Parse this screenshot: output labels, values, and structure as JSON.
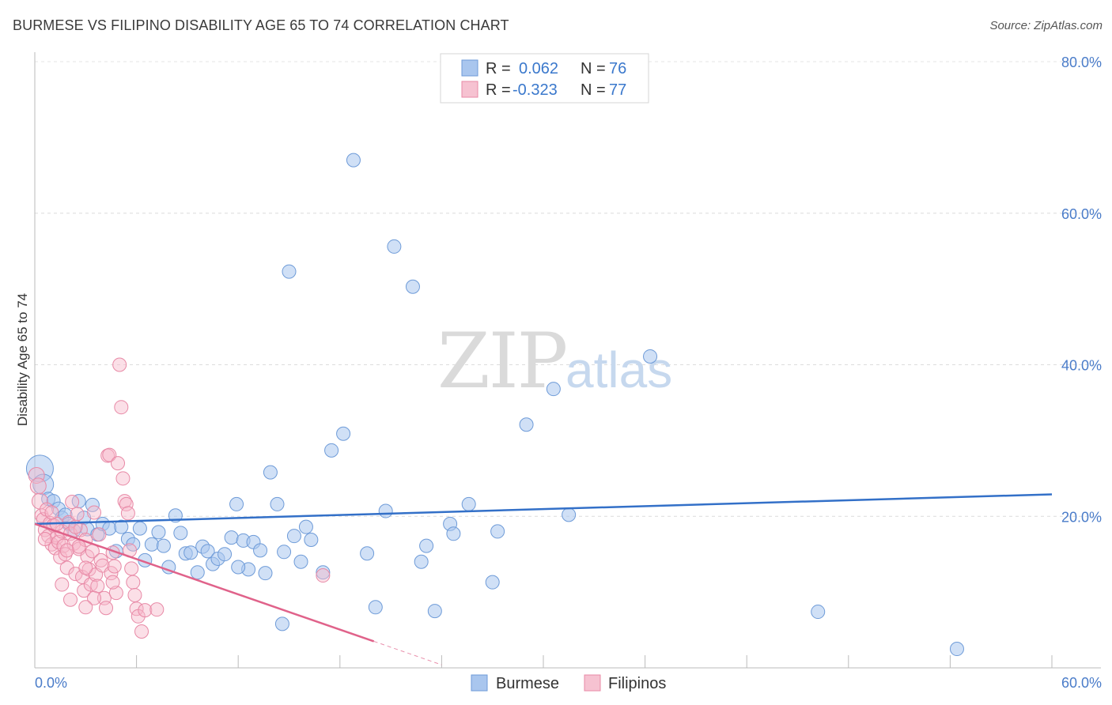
{
  "title": "BURMESE VS FILIPINO DISABILITY AGE 65 TO 74 CORRELATION CHART",
  "source": "Source: ZipAtlas.com",
  "watermark": {
    "part1": "ZIP",
    "part2": "atlas"
  },
  "chart_data": {
    "type": "scatter",
    "title": "BURMESE VS FILIPINO DISABILITY AGE 65 TO 74 CORRELATION CHART",
    "xlabel": "",
    "ylabel": "Disability Age 65 to 74",
    "xlim": [
      0,
      60
    ],
    "ylim": [
      0,
      80
    ],
    "x_tick_labels": [
      "0.0%",
      "60.0%"
    ],
    "y_ticks": [
      20,
      40,
      60,
      80
    ],
    "y_tick_labels": [
      "20.0%",
      "40.0%",
      "60.0%",
      "80.0%"
    ],
    "legend": {
      "entries": [
        {
          "r_label": "R =",
          "r_value": "0.062",
          "n_label": "N =",
          "n_value": "76"
        },
        {
          "r_label": "R =",
          "r_value": "-0.323",
          "n_label": "N =",
          "n_value": "77"
        }
      ],
      "bottom": [
        "Burmese",
        "Filipinos"
      ]
    },
    "colors": {
      "burmese_fill": "#a9c6ee",
      "burmese_stroke": "#6e9bd8",
      "burmese_line": "#3370c8",
      "filipino_fill": "#f6b8ca",
      "filipino_stroke": "#e889a6",
      "filipino_line": "#e0628a",
      "tick_text": "#4a7cc9"
    },
    "series": [
      {
        "name": "Burmese",
        "trend": {
          "x": [
            0,
            60
          ],
          "y": [
            19.0,
            22.9
          ]
        },
        "points": [
          [
            0.3,
            26.3
          ],
          [
            0.5,
            24.2
          ],
          [
            0.8,
            22.3
          ],
          [
            1.1,
            22.0
          ],
          [
            1.4,
            21.0
          ],
          [
            1.6,
            19.8
          ],
          [
            1.8,
            20.2
          ],
          [
            2.0,
            19.0
          ],
          [
            2.3,
            18.1
          ],
          [
            2.6,
            22.0
          ],
          [
            2.9,
            19.8
          ],
          [
            3.1,
            18.3
          ],
          [
            3.4,
            21.5
          ],
          [
            3.7,
            17.6
          ],
          [
            4.0,
            19.0
          ],
          [
            4.4,
            18.4
          ],
          [
            4.8,
            15.4
          ],
          [
            5.1,
            18.6
          ],
          [
            5.5,
            17.0
          ],
          [
            5.8,
            16.3
          ],
          [
            6.2,
            18.4
          ],
          [
            6.5,
            14.2
          ],
          [
            6.9,
            16.3
          ],
          [
            7.3,
            17.9
          ],
          [
            7.6,
            16.1
          ],
          [
            7.9,
            13.3
          ],
          [
            8.3,
            20.1
          ],
          [
            8.6,
            17.8
          ],
          [
            8.9,
            15.1
          ],
          [
            9.2,
            15.2
          ],
          [
            9.6,
            12.6
          ],
          [
            9.9,
            16.0
          ],
          [
            10.2,
            15.4
          ],
          [
            10.5,
            13.7
          ],
          [
            10.8,
            14.4
          ],
          [
            11.2,
            15.0
          ],
          [
            11.6,
            17.2
          ],
          [
            11.9,
            21.6
          ],
          [
            12.3,
            16.8
          ],
          [
            12.6,
            13.0
          ],
          [
            12.9,
            16.6
          ],
          [
            13.3,
            15.5
          ],
          [
            13.6,
            12.5
          ],
          [
            13.9,
            25.8
          ],
          [
            14.3,
            21.6
          ],
          [
            14.7,
            15.3
          ],
          [
            15.0,
            52.3
          ],
          [
            15.3,
            17.4
          ],
          [
            15.7,
            14.0
          ],
          [
            16.0,
            18.6
          ],
          [
            16.3,
            16.9
          ],
          [
            17.0,
            12.6
          ],
          [
            17.5,
            28.7
          ],
          [
            18.2,
            30.9
          ],
          [
            18.8,
            67.0
          ],
          [
            19.6,
            15.1
          ],
          [
            20.1,
            8.0
          ],
          [
            20.7,
            20.7
          ],
          [
            21.2,
            55.6
          ],
          [
            22.3,
            50.3
          ],
          [
            22.8,
            14.0
          ],
          [
            23.1,
            16.1
          ],
          [
            23.6,
            7.5
          ],
          [
            24.5,
            19.0
          ],
          [
            24.7,
            17.7
          ],
          [
            25.6,
            21.6
          ],
          [
            27.0,
            11.3
          ],
          [
            27.3,
            18.0
          ],
          [
            29.0,
            32.1
          ],
          [
            30.6,
            36.8
          ],
          [
            31.5,
            20.2
          ],
          [
            36.3,
            41.1
          ],
          [
            46.2,
            7.4
          ],
          [
            54.4,
            2.5
          ],
          [
            14.6,
            5.8
          ],
          [
            12.0,
            13.3
          ]
        ]
      },
      {
        "name": "Filipinos",
        "trend": {
          "x": [
            0,
            20
          ],
          "y": [
            19.0,
            3.5
          ]
        },
        "trend_dashed": {
          "x": [
            20,
            24
          ],
          "y": [
            3.5,
            0.4
          ]
        },
        "points": [
          [
            0.1,
            25.4
          ],
          [
            0.2,
            24.0
          ],
          [
            0.3,
            22.0
          ],
          [
            0.4,
            20.1
          ],
          [
            0.5,
            19.6
          ],
          [
            0.6,
            18.2
          ],
          [
            0.7,
            20.9
          ],
          [
            0.8,
            17.4
          ],
          [
            0.9,
            19.1
          ],
          [
            1.0,
            16.3
          ],
          [
            1.1,
            18.8
          ],
          [
            1.2,
            15.8
          ],
          [
            1.3,
            17.2
          ],
          [
            1.4,
            16.6
          ],
          [
            1.5,
            14.6
          ],
          [
            1.6,
            18.0
          ],
          [
            1.7,
            16.1
          ],
          [
            1.8,
            15.0
          ],
          [
            1.9,
            13.2
          ],
          [
            2.0,
            19.2
          ],
          [
            2.1,
            17.7
          ],
          [
            2.2,
            21.9
          ],
          [
            2.3,
            16.4
          ],
          [
            2.4,
            12.4
          ],
          [
            2.5,
            20.3
          ],
          [
            2.6,
            15.7
          ],
          [
            2.7,
            18.2
          ],
          [
            2.8,
            12.0
          ],
          [
            2.9,
            10.2
          ],
          [
            3.0,
            16.9
          ],
          [
            3.1,
            14.7
          ],
          [
            3.2,
            13.0
          ],
          [
            3.3,
            11.0
          ],
          [
            3.4,
            15.4
          ],
          [
            3.5,
            20.5
          ],
          [
            3.6,
            12.3
          ],
          [
            3.7,
            10.8
          ],
          [
            3.8,
            17.6
          ],
          [
            3.9,
            14.2
          ],
          [
            4.0,
            13.5
          ],
          [
            4.1,
            9.2
          ],
          [
            4.2,
            7.9
          ],
          [
            4.3,
            28.0
          ],
          [
            4.4,
            28.1
          ],
          [
            4.5,
            12.5
          ],
          [
            4.6,
            15.2
          ],
          [
            4.7,
            13.4
          ],
          [
            4.8,
            9.9
          ],
          [
            4.9,
            27.0
          ],
          [
            5.0,
            40.0
          ],
          [
            5.1,
            34.4
          ],
          [
            5.2,
            25.0
          ],
          [
            5.3,
            22.0
          ],
          [
            5.4,
            21.6
          ],
          [
            5.5,
            20.4
          ],
          [
            5.6,
            15.5
          ],
          [
            5.7,
            13.1
          ],
          [
            5.8,
            11.3
          ],
          [
            5.9,
            9.6
          ],
          [
            6.0,
            7.8
          ],
          [
            6.1,
            6.8
          ],
          [
            6.3,
            4.8
          ],
          [
            6.5,
            7.6
          ],
          [
            3.0,
            13.2
          ],
          [
            2.6,
            16.0
          ],
          [
            1.6,
            11.0
          ],
          [
            2.1,
            9.0
          ],
          [
            7.2,
            7.7
          ],
          [
            17.0,
            12.2
          ],
          [
            1.3,
            19.0
          ],
          [
            1.0,
            20.5
          ],
          [
            0.6,
            17.0
          ],
          [
            2.4,
            18.6
          ],
          [
            1.9,
            15.5
          ],
          [
            3.5,
            9.2
          ],
          [
            4.6,
            11.3
          ],
          [
            3.0,
            8.0
          ]
        ]
      }
    ]
  }
}
